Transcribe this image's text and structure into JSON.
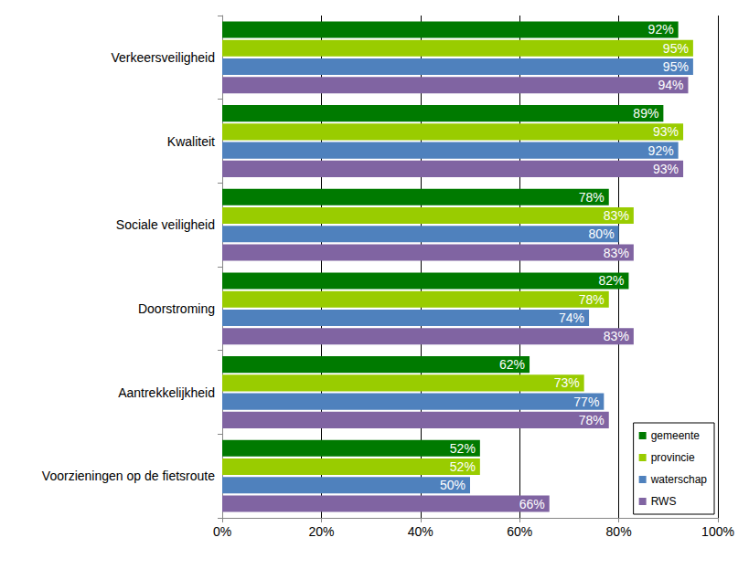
{
  "chart_data": {
    "type": "bar",
    "orientation": "horizontal",
    "categories": [
      "Verkeersveiligheid",
      "Kwaliteit",
      "Sociale veiligheid",
      "Doorstroming",
      "Aantrekkelijkheid",
      "Voorzieningen op de fietsroute"
    ],
    "series": [
      {
        "name": "gemeente",
        "color": "#007a00",
        "values": [
          92,
          89,
          78,
          82,
          62,
          52
        ],
        "value_labels": [
          "92%",
          "89%",
          "78%",
          "82%",
          "62%",
          "52%"
        ]
      },
      {
        "name": "provincie",
        "color": "#99cc00",
        "values": [
          95,
          93,
          83,
          78,
          73,
          52
        ],
        "value_labels": [
          "95%",
          "93%",
          "83%",
          "78%",
          "73%",
          "52%"
        ]
      },
      {
        "name": "waterschap",
        "color": "#4f81bd",
        "values": [
          95,
          92,
          80,
          74,
          77,
          50
        ],
        "value_labels": [
          "95%",
          "92%",
          "80%",
          "74%",
          "77%",
          "50%"
        ]
      },
      {
        "name": "RWS",
        "color": "#8064a2",
        "values": [
          94,
          93,
          83,
          83,
          78,
          66
        ],
        "value_labels": [
          "94%",
          "93%",
          "83%",
          "83%",
          "78%",
          "66%"
        ]
      }
    ],
    "xlim": [
      0,
      100
    ],
    "xticks": [
      {
        "value": 0,
        "label": "0%"
      },
      {
        "value": 20,
        "label": "20%"
      },
      {
        "value": 40,
        "label": "40%"
      },
      {
        "value": 60,
        "label": "60%"
      },
      {
        "value": 80,
        "label": "80%"
      },
      {
        "value": 100,
        "label": "100%"
      }
    ],
    "grid": true,
    "legend": "lower right",
    "data_labels": true
  }
}
